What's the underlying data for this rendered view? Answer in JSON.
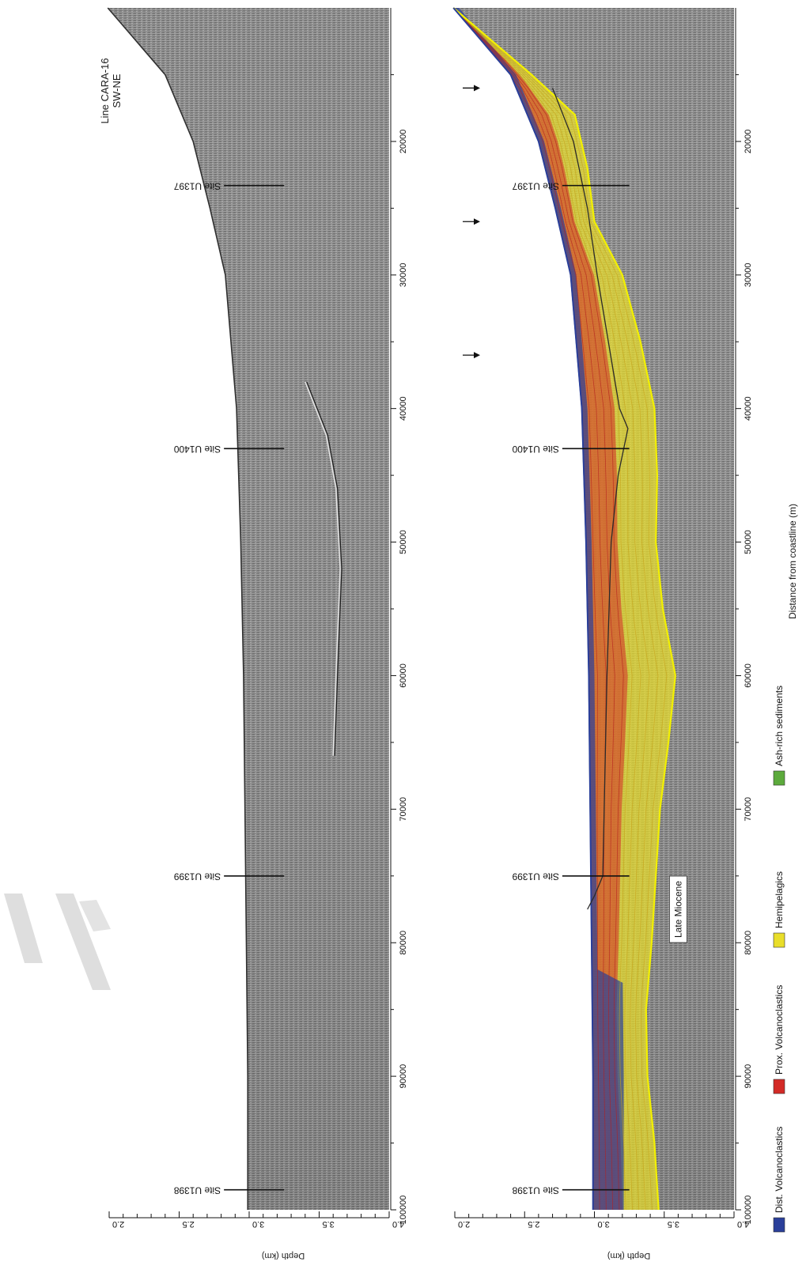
{
  "figure": {
    "line_label": "Line CARA-16",
    "direction": "SW-NE",
    "late_miocene_label": "Late Miocene",
    "sites": [
      {
        "name": "Site U1397",
        "distance_m": 23300
      },
      {
        "name": "Site U1400",
        "distance_m": 43000
      },
      {
        "name": "Site U1399",
        "distance_m": 75000
      },
      {
        "name": "Site U1398",
        "distance_m": 98500
      }
    ],
    "arrows_distance_m": [
      16000,
      26000,
      36000
    ],
    "legend": [
      {
        "label": "Dist. Volcanoclastics",
        "color": "#2a3f9a"
      },
      {
        "label": "Prox. Volcanoclastics",
        "color": "#d32a26"
      },
      {
        "label": "Hemipelagics",
        "color": "#e9de2a"
      },
      {
        "label": "Ash-rich sediments",
        "color": "#5caa3c"
      }
    ]
  },
  "chart_data": [
    {
      "type": "seismic-section",
      "panel": "uninterpreted",
      "xlabel": "Distance from coastline (m)",
      "ylabel": "Depth (km)",
      "xlim": [
        100000,
        10000
      ],
      "ylim": [
        2.0,
        4.0
      ],
      "x_ticks": [
        20000,
        30000,
        40000,
        50000,
        60000,
        70000,
        80000,
        90000,
        100000
      ],
      "y_ticks": [
        2.0,
        2.5,
        3.0,
        3.5,
        4.0
      ],
      "seafloor": [
        [
          10000,
          1.99
        ],
        [
          15000,
          2.4
        ],
        [
          20000,
          2.6
        ],
        [
          25000,
          2.72
        ],
        [
          30000,
          2.83
        ],
        [
          40000,
          2.91
        ],
        [
          50000,
          2.94
        ],
        [
          60000,
          2.96
        ],
        [
          70000,
          2.97
        ],
        [
          80000,
          2.98
        ],
        [
          90000,
          2.99
        ],
        [
          100000,
          2.99
        ]
      ],
      "reflector": [
        [
          38000,
          3.4
        ],
        [
          42000,
          3.55
        ],
        [
          46000,
          3.62
        ],
        [
          52000,
          3.65
        ],
        [
          60000,
          3.62
        ],
        [
          66000,
          3.6
        ]
      ]
    },
    {
      "type": "seismic-section",
      "panel": "interpreted",
      "xlabel": "Distance from coastline (m)",
      "ylabel": "Depth (km)",
      "xlim": [
        100000,
        10000
      ],
      "ylim": [
        2.0,
        4.0
      ],
      "x_ticks": [
        20000,
        30000,
        40000,
        50000,
        60000,
        70000,
        80000,
        90000,
        100000
      ],
      "y_ticks": [
        2.0,
        2.5,
        3.0,
        3.5,
        4.0
      ],
      "seafloor": [
        [
          10000,
          1.99
        ],
        [
          15000,
          2.4
        ],
        [
          20000,
          2.6
        ],
        [
          25000,
          2.72
        ],
        [
          30000,
          2.83
        ],
        [
          40000,
          2.91
        ],
        [
          50000,
          2.94
        ],
        [
          60000,
          2.96
        ],
        [
          70000,
          2.97
        ],
        [
          80000,
          2.98
        ],
        [
          90000,
          2.99
        ],
        [
          100000,
          2.99
        ]
      ],
      "late_miocene_base": [
        [
          10000,
          1.99
        ],
        [
          15000,
          2.55
        ],
        [
          18000,
          2.86
        ],
        [
          22000,
          2.95
        ],
        [
          26000,
          3.0
        ],
        [
          30000,
          3.2
        ],
        [
          35000,
          3.33
        ],
        [
          40000,
          3.43
        ],
        [
          45000,
          3.45
        ],
        [
          50000,
          3.44
        ],
        [
          55000,
          3.49
        ],
        [
          60000,
          3.58
        ],
        [
          65000,
          3.53
        ],
        [
          70000,
          3.47
        ],
        [
          75000,
          3.44
        ],
        [
          80000,
          3.41
        ],
        [
          85000,
          3.37
        ],
        [
          90000,
          3.38
        ],
        [
          95000,
          3.43
        ],
        [
          100000,
          3.46
        ]
      ],
      "internal_horizon": [
        [
          16000,
          2.7
        ],
        [
          20000,
          2.85
        ],
        [
          25000,
          2.95
        ],
        [
          30000,
          3.02
        ],
        [
          35000,
          3.1
        ],
        [
          40000,
          3.18
        ],
        [
          41500,
          3.24
        ],
        [
          45000,
          3.17
        ],
        [
          50000,
          3.12
        ],
        [
          60000,
          3.09
        ],
        [
          70000,
          3.07
        ],
        [
          75000,
          3.06
        ],
        [
          76500,
          3.0
        ],
        [
          77500,
          2.95
        ]
      ]
    }
  ]
}
